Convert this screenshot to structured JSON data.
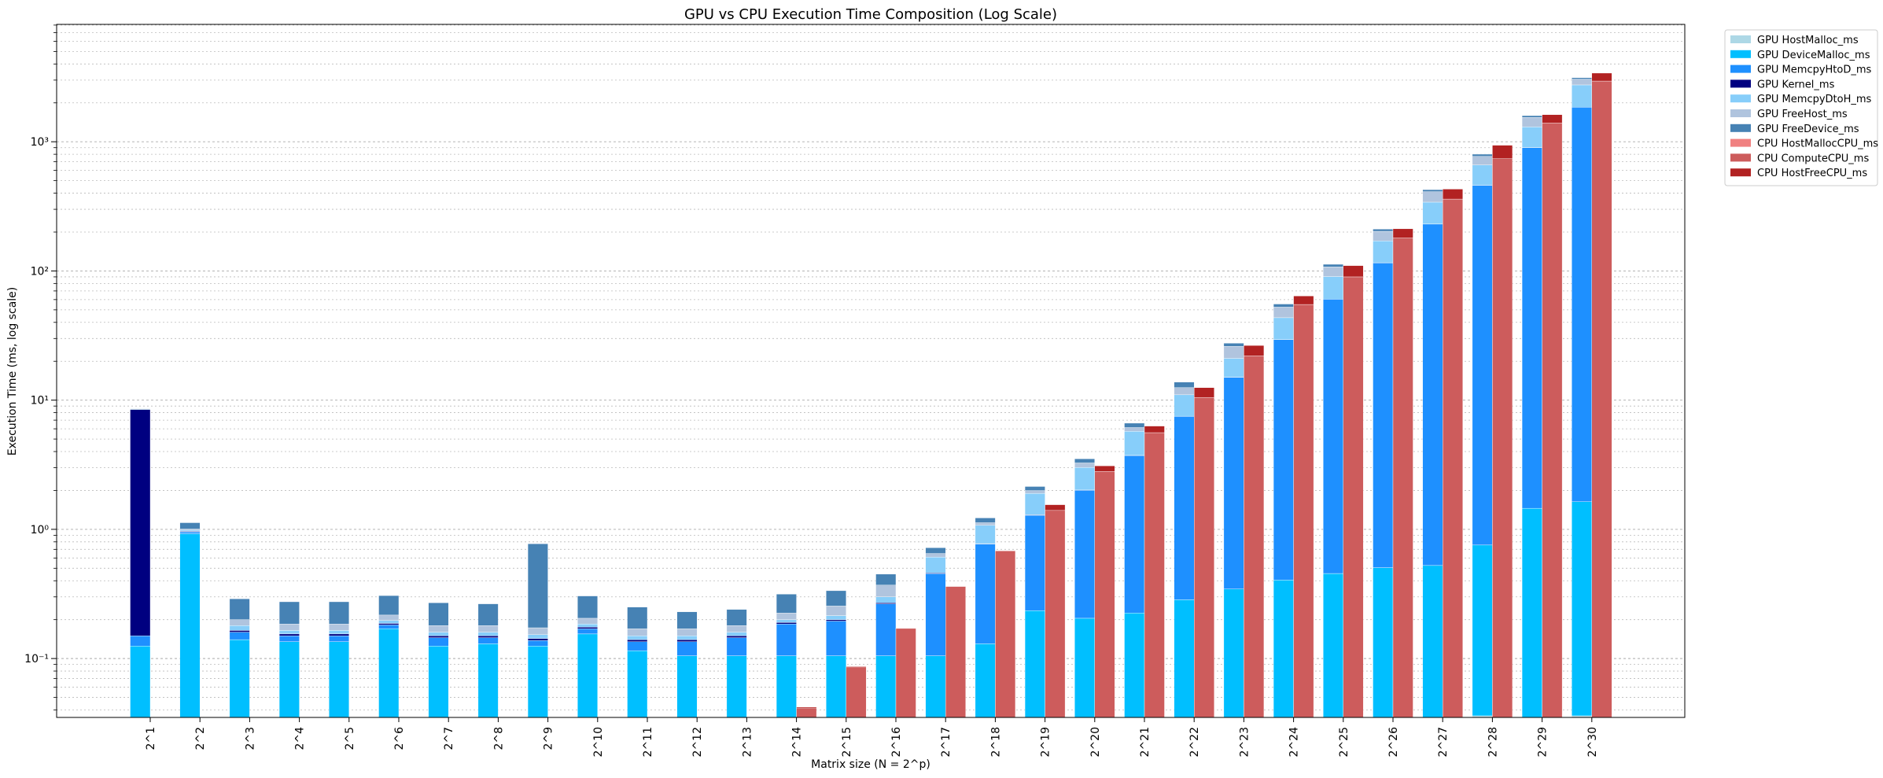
{
  "chart_data": {
    "type": "stacked_bar_log",
    "title": "GPU vs CPU Execution Time Composition (Log Scale)",
    "x_label": "Matrix size (N = 2^p)",
    "y_label": "Execution Time (ms, log scale)",
    "categories": [
      "2^1",
      "2^2",
      "2^3",
      "2^4",
      "2^5",
      "2^6",
      "2^7",
      "2^8",
      "2^9",
      "2^10",
      "2^11",
      "2^12",
      "2^13",
      "2^14",
      "2^15",
      "2^16",
      "2^17",
      "2^18",
      "2^19",
      "2^20",
      "2^21",
      "2^22",
      "2^23",
      "2^24",
      "2^25",
      "2^26",
      "2^27",
      "2^28",
      "2^29",
      "2^30"
    ],
    "log_scale": true,
    "grid": true,
    "legend": "outside-right",
    "ylim": [
      0.035,
      8100
    ],
    "yticks": [
      {
        "value": 0.1,
        "label": "10⁻¹"
      },
      {
        "value": 1,
        "label": "10⁰"
      },
      {
        "value": 10,
        "label": "10¹"
      },
      {
        "value": 100,
        "label": "10²"
      },
      {
        "value": 1000,
        "label": "10³"
      }
    ],
    "yticks_minor": [
      0.04,
      0.05,
      0.06,
      0.07,
      0.08,
      0.09,
      0.2,
      0.3,
      0.4,
      0.5,
      0.6,
      0.7,
      0.8,
      0.9,
      2,
      3,
      4,
      5,
      6,
      7,
      8,
      9,
      20,
      30,
      40,
      50,
      60,
      70,
      80,
      90,
      200,
      300,
      400,
      500,
      600,
      700,
      800,
      900,
      2000,
      3000,
      4000,
      5000,
      6000,
      7000,
      8000
    ],
    "series": [
      {
        "name": "GPU HostMalloc_ms",
        "color": "#add8e6",
        "stack": 0,
        "values": [
          0.005,
          0.005,
          0.005,
          0.005,
          0.005,
          0.005,
          0.005,
          0.005,
          0.005,
          0.005,
          0.005,
          0.005,
          0.005,
          0.005,
          0.005,
          0.005,
          0.005,
          0.005,
          0.005,
          0.005,
          0.005,
          0.005,
          0.005,
          0.005,
          0.005,
          0.005,
          0.005,
          0.036,
          0.005,
          0.036
        ]
      },
      {
        "name": "GPU DeviceMalloc_ms",
        "color": "#00bfff",
        "stack": 0,
        "values": [
          0.12,
          0.92,
          0.135,
          0.13,
          0.13,
          0.165,
          0.12,
          0.125,
          0.12,
          0.15,
          0.11,
          0.1,
          0.1,
          0.1,
          0.1,
          0.1,
          0.1,
          0.125,
          0.23,
          0.2,
          0.22,
          0.28,
          0.34,
          0.4,
          0.45,
          0.5,
          0.52,
          0.72,
          1.45,
          1.6
        ]
      },
      {
        "name": "GPU MemcpyHtoD_ms",
        "color": "#1e90ff",
        "stack": 0,
        "values": [
          0.025,
          0.03,
          0.02,
          0.015,
          0.015,
          0.012,
          0.02,
          0.015,
          0.013,
          0.015,
          0.02,
          0.03,
          0.04,
          0.08,
          0.09,
          0.16,
          0.35,
          0.64,
          1.05,
          1.8,
          3.5,
          7.2,
          14.7,
          29,
          60,
          115,
          230,
          460,
          900,
          1850
        ]
      },
      {
        "name": "GPU Kernel_ms",
        "color": "#000080",
        "stack": 0,
        "values": [
          8.3,
          0.01,
          0.005,
          0.005,
          0.005,
          0.005,
          0.005,
          0.005,
          0.005,
          0.005,
          0.005,
          0.005,
          0.005,
          0.005,
          0.005,
          0.005,
          0.005,
          0.005,
          0.01,
          0.01,
          0.01,
          0.02,
          0.03,
          0.05,
          0.1,
          0.2,
          0.3,
          0.5,
          1,
          2
        ]
      },
      {
        "name": "GPU MemcpyDtoH_ms",
        "color": "#87cefa",
        "stack": 0,
        "values": [
          0.01,
          0.02,
          0.015,
          0.01,
          0.01,
          0.01,
          0.01,
          0.01,
          0.01,
          0.01,
          0.01,
          0.01,
          0.01,
          0.01,
          0.015,
          0.03,
          0.15,
          0.3,
          0.6,
          1,
          2,
          3.5,
          6,
          14,
          30,
          55,
          110,
          200,
          400,
          900
        ]
      },
      {
        "name": "GPU FreeHost_ms",
        "color": "#b0c4de",
        "stack": 0,
        "values": [
          0.01,
          0.02,
          0.02,
          0.02,
          0.02,
          0.02,
          0.02,
          0.02,
          0.02,
          0.02,
          0.02,
          0.02,
          0.02,
          0.025,
          0.04,
          0.07,
          0.04,
          0.05,
          0.1,
          0.25,
          0.4,
          1.5,
          5,
          9,
          17,
          32,
          70,
          110,
          240,
          300
        ]
      },
      {
        "name": "GPU FreeDevice_ms",
        "color": "#4682b4",
        "stack": 0,
        "values": [
          0.1,
          0.12,
          0.09,
          0.09,
          0.09,
          0.09,
          0.09,
          0.085,
          0.6,
          0.1,
          0.08,
          0.06,
          0.06,
          0.09,
          0.08,
          0.08,
          0.07,
          0.1,
          0.15,
          0.25,
          0.5,
          1.3,
          1.5,
          3,
          5,
          8,
          15,
          30,
          50,
          80
        ]
      },
      {
        "name": "CPU HostMallocCPU_ms",
        "color": "#f08080",
        "stack": 1,
        "values": [
          0.001,
          0.001,
          0.001,
          0.001,
          0.001,
          0.001,
          0.001,
          0.001,
          0.001,
          0.001,
          0.001,
          0.001,
          0.001,
          0.001,
          0.001,
          0.001,
          0.001,
          0.001,
          0.001,
          0.001,
          0.001,
          0.001,
          0.001,
          0.001,
          0.001,
          0.001,
          0.001,
          0.001,
          0.001,
          0.001
        ]
      },
      {
        "name": "CPU ComputeCPU_ms",
        "color": "#cd5c5c",
        "stack": 1,
        "values": [
          0.001,
          0.001,
          0.001,
          0.001,
          0.001,
          0.002,
          0.003,
          0.004,
          0.006,
          0.008,
          0.012,
          0.018,
          0.025,
          0.04,
          0.085,
          0.17,
          0.36,
          0.68,
          1.4,
          2.8,
          5.6,
          10.5,
          22,
          55,
          90,
          180,
          360,
          740,
          1400,
          2950
        ]
      },
      {
        "name": "CPU HostFreeCPU_ms",
        "color": "#b22222",
        "stack": 1,
        "values": [
          0.001,
          0.001,
          0.001,
          0.001,
          0.001,
          0.001,
          0.001,
          0.001,
          0.001,
          0.001,
          0.001,
          0.001,
          0.001,
          0.001,
          0.001,
          0.001,
          0.001,
          0.001,
          0.15,
          0.3,
          0.7,
          2,
          4.5,
          9,
          20,
          32,
          70,
          200,
          220,
          450
        ]
      }
    ]
  }
}
